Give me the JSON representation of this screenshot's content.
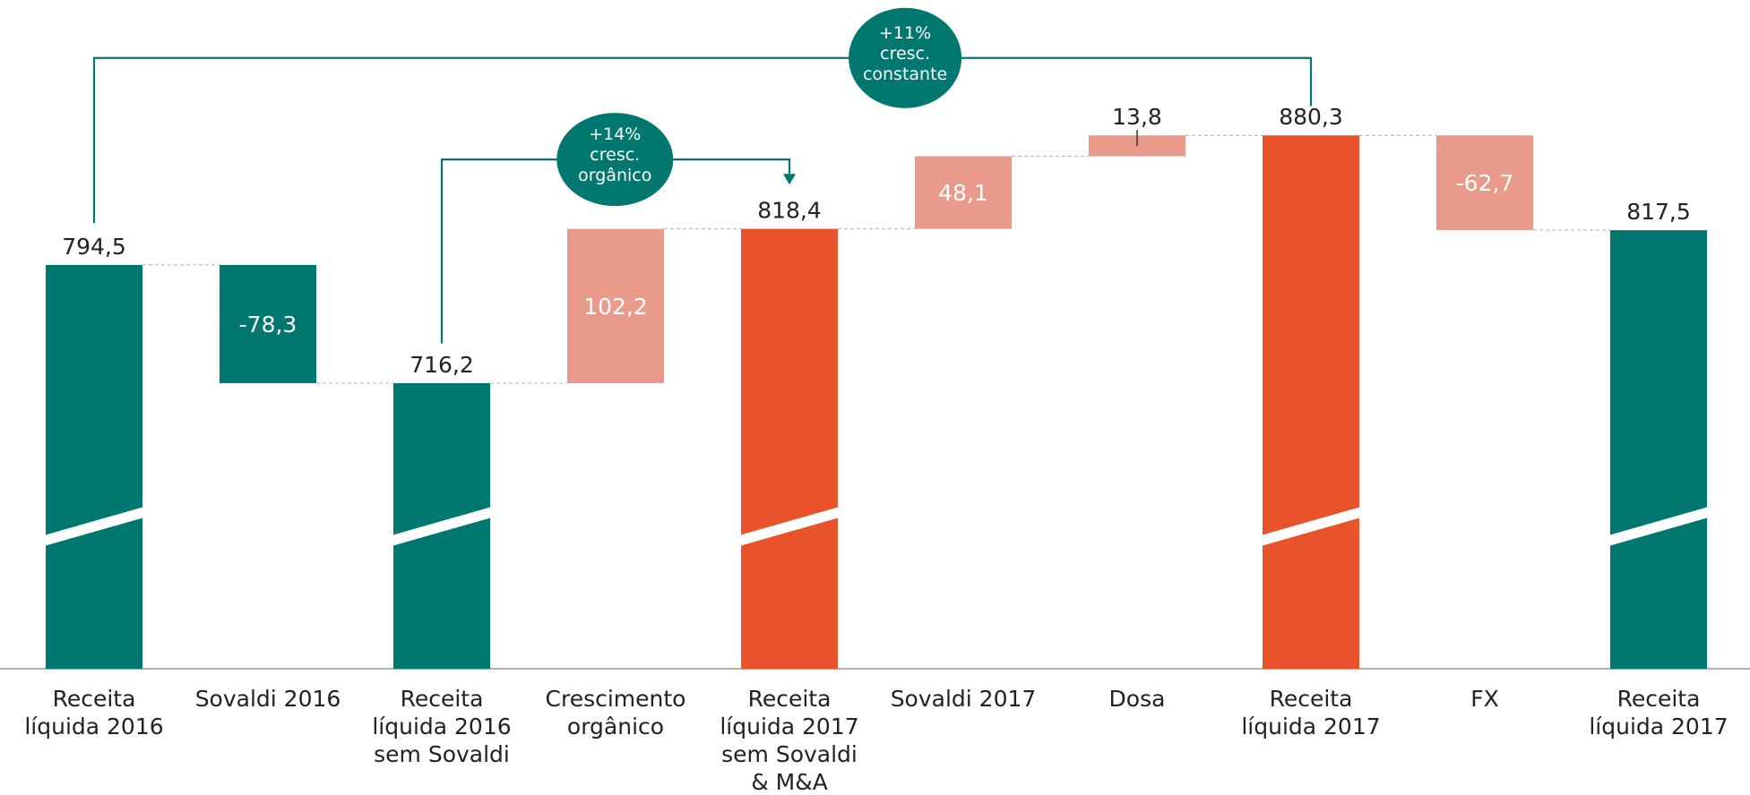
{
  "chart_data": {
    "type": "waterfall",
    "categories": [
      "Receita\nlíquida 2016",
      "Sovaldi 2016",
      "Receita\nlíquida 2016\nsem Sovaldi",
      "Crescimento\norgânico",
      "Receita\nlíquida 2017\nsem Sovaldi\n& M&A",
      "Sovaldi 2017",
      "Dosa",
      "Receita\nlíquida 2017",
      "FX",
      "Receita\nlíquida 2017"
    ],
    "values": [
      794.5,
      -78.3,
      716.2,
      102.2,
      818.4,
      48.1,
      13.8,
      880.3,
      -62.7,
      817.5
    ],
    "value_labels": [
      "794,5",
      "-78,3",
      "716,2",
      "102,2",
      "818,4",
      "48,1",
      "13,8",
      "880,3",
      "-62,7",
      "817,5"
    ],
    "bar_kinds": [
      "total",
      "delta",
      "total",
      "delta",
      "total",
      "delta",
      "delta",
      "total",
      "delta",
      "total"
    ],
    "colors": [
      "#00776f",
      "#00776f",
      "#00776f",
      "#e99a8a",
      "#e9532b",
      "#e99a8a",
      "#e99a8a",
      "#e9532b",
      "#e99a8a",
      "#00776f"
    ],
    "ylim": [
      527,
      900
    ],
    "annotations": [
      "+11%\ncresc.\nconstante",
      "+14%\ncresc.\norgânico"
    ]
  }
}
